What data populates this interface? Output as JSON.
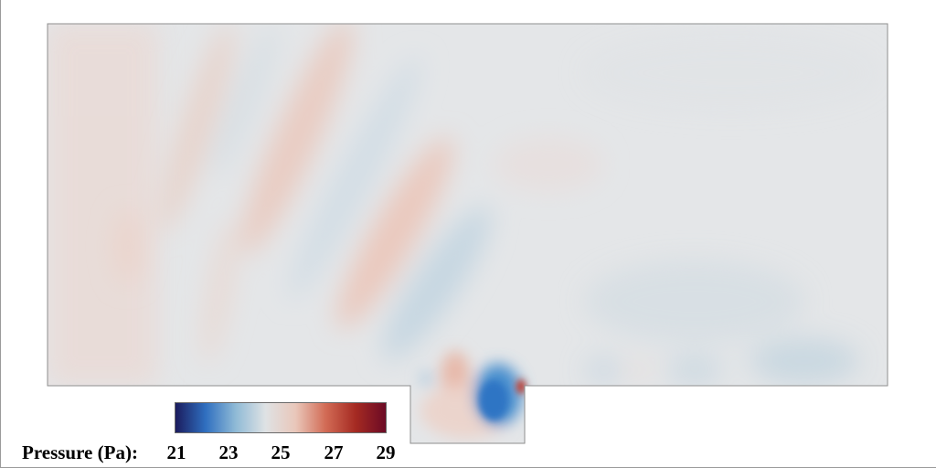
{
  "legend": {
    "title": "Pressure (Pa):",
    "ticks": [
      "21",
      "23",
      "25",
      "27",
      "29"
    ],
    "colormap": [
      "#1b1c5e",
      "#2f6fc0",
      "#8fbad6",
      "#dfe2e4",
      "#e9c7ba",
      "#d26b55",
      "#a52a22",
      "#6b0a25"
    ]
  },
  "field": {
    "background_color": "#e4e6e8",
    "low_color": "#2f78c6",
    "high_color": "#c23a2d"
  }
}
